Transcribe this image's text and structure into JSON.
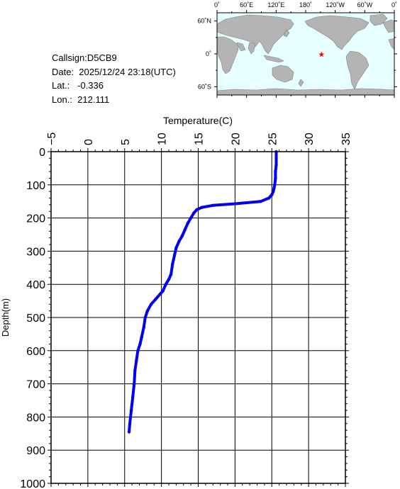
{
  "info": {
    "callsign": "Callsign:D5CB9",
    "date": "Date:  2025/12/24 23:18(UTC)",
    "lat": "Lat.:   -0.336",
    "lon": "Lon.:  212.111"
  },
  "map": {
    "lon_labels": [
      "0˚",
      "60˚E",
      "120˚E",
      "180˚",
      "120˚W",
      "60˚W",
      "0˚"
    ],
    "lat_labels": [
      "60˚N",
      "0˚",
      "60˚S"
    ],
    "station": {
      "lon": 212.111,
      "lat": -0.336
    },
    "colors": {
      "ocean": "#e6ffff",
      "land": "#b4b4b4",
      "marker": "#ff0000"
    }
  },
  "chart_data": {
    "type": "line",
    "title": "",
    "xlabel": "Temperature(C)",
    "ylabel": "Depth(m)",
    "xlim": [
      -5,
      35
    ],
    "ylim": [
      1000,
      0
    ],
    "x_ticks": [
      -5,
      0,
      5,
      10,
      15,
      20,
      25,
      30,
      35
    ],
    "y_ticks": [
      0,
      100,
      200,
      300,
      400,
      500,
      600,
      700,
      800,
      900,
      1000
    ],
    "grid": true,
    "series": [
      {
        "color": "#0000ee",
        "points": [
          [
            25.6,
            0
          ],
          [
            25.6,
            20
          ],
          [
            25.6,
            40
          ],
          [
            25.5,
            60
          ],
          [
            25.5,
            80
          ],
          [
            25.4,
            100
          ],
          [
            25.3,
            110
          ],
          [
            25.2,
            120
          ],
          [
            25.0,
            130
          ],
          [
            24.6,
            140
          ],
          [
            23.5,
            150
          ],
          [
            20.0,
            157
          ],
          [
            17.0,
            162
          ],
          [
            15.5,
            168
          ],
          [
            14.8,
            175
          ],
          [
            14.4,
            185
          ],
          [
            14.0,
            200
          ],
          [
            13.6,
            215
          ],
          [
            13.2,
            235
          ],
          [
            12.8,
            255
          ],
          [
            12.4,
            270
          ],
          [
            12.0,
            290
          ],
          [
            11.8,
            310
          ],
          [
            11.5,
            340
          ],
          [
            11.3,
            370
          ],
          [
            11.0,
            385
          ],
          [
            10.6,
            400
          ],
          [
            10.2,
            420
          ],
          [
            9.8,
            430
          ],
          [
            9.2,
            445
          ],
          [
            8.6,
            460
          ],
          [
            8.1,
            480
          ],
          [
            7.8,
            500
          ],
          [
            7.6,
            530
          ],
          [
            7.3,
            560
          ],
          [
            7.1,
            580
          ],
          [
            6.8,
            600
          ],
          [
            6.6,
            630
          ],
          [
            6.4,
            660
          ],
          [
            6.3,
            700
          ],
          [
            6.1,
            740
          ],
          [
            5.9,
            780
          ],
          [
            5.7,
            820
          ],
          [
            5.6,
            845
          ]
        ]
      }
    ]
  }
}
